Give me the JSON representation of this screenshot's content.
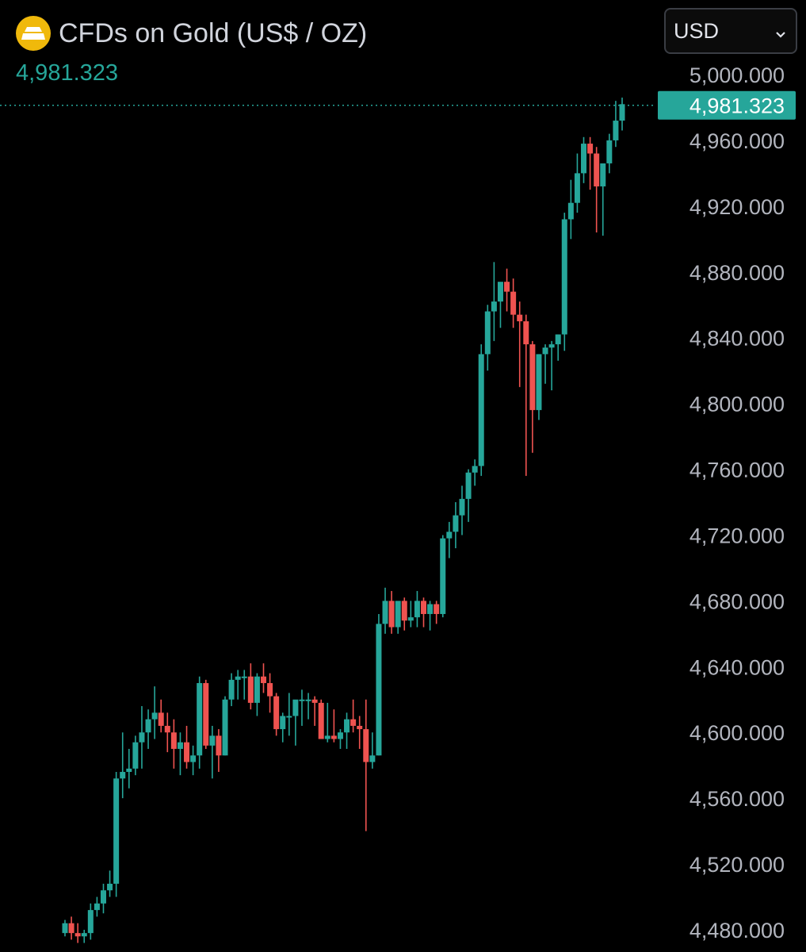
{
  "header": {
    "title": "CFDs on Gold (US$ / OZ)",
    "last_price": "4,981.323",
    "icon": "gold-bars-icon"
  },
  "currency_selector": {
    "value": "USD",
    "icon": "chevron-down-icon"
  },
  "colors": {
    "up": "#26a69a",
    "down": "#ef5350",
    "text": "#b2b5be",
    "background": "#000000"
  },
  "chart_data": {
    "type": "candlestick",
    "y_axis": {
      "ticks": [
        "5,000.000",
        "4,960.000",
        "4,920.000",
        "4,880.000",
        "4,840.000",
        "4,800.000",
        "4,760.000",
        "4,720.000",
        "4,680.000",
        "4,640.000",
        "4,600.000",
        "4,560.000",
        "4,520.000",
        "4,480.000"
      ],
      "tick_values": [
        5000,
        4960,
        4920,
        4880,
        4840,
        4800,
        4760,
        4720,
        4680,
        4640,
        4600,
        4560,
        4520,
        4480
      ],
      "range": [
        4470,
        5020
      ]
    },
    "current_price": {
      "value": 4981.323,
      "label": "4,981.323"
    },
    "candles": [
      [
        4478,
        4486,
        4476,
        4484
      ],
      [
        4484,
        4488,
        4474,
        4478
      ],
      [
        4478,
        4484,
        4472,
        4476
      ],
      [
        4476,
        4480,
        4472,
        4478
      ],
      [
        4478,
        4496,
        4474,
        4492
      ],
      [
        4492,
        4500,
        4488,
        4496
      ],
      [
        4496,
        4508,
        4490,
        4504
      ],
      [
        4504,
        4516,
        4500,
        4508
      ],
      [
        4508,
        4576,
        4500,
        4572
      ],
      [
        4572,
        4600,
        4560,
        4576
      ],
      [
        4576,
        4590,
        4566,
        4578
      ],
      [
        4578,
        4598,
        4574,
        4594
      ],
      [
        4594,
        4616,
        4578,
        4600
      ],
      [
        4600,
        4614,
        4590,
        4608
      ],
      [
        4608,
        4628,
        4596,
        4612
      ],
      [
        4612,
        4620,
        4600,
        4604
      ],
      [
        4604,
        4612,
        4588,
        4600
      ],
      [
        4600,
        4608,
        4578,
        4590
      ],
      [
        4590,
        4600,
        4574,
        4594
      ],
      [
        4594,
        4604,
        4578,
        4582
      ],
      [
        4582,
        4592,
        4574,
        4586
      ],
      [
        4586,
        4634,
        4578,
        4630
      ],
      [
        4630,
        4632,
        4590,
        4592
      ],
      [
        4592,
        4604,
        4572,
        4598
      ],
      [
        4598,
        4602,
        4576,
        4586
      ],
      [
        4586,
        4622,
        4586,
        4620
      ],
      [
        4620,
        4636,
        4616,
        4632
      ],
      [
        4632,
        4638,
        4620,
        4634
      ],
      [
        4634,
        4638,
        4620,
        4634
      ],
      [
        4634,
        4642,
        4614,
        4618
      ],
      [
        4618,
        4636,
        4610,
        4634
      ],
      [
        4634,
        4642,
        4624,
        4630
      ],
      [
        4630,
        4636,
        4612,
        4622
      ],
      [
        4622,
        4624,
        4598,
        4602
      ],
      [
        4602,
        4612,
        4594,
        4610
      ],
      [
        4610,
        4624,
        4598,
        4610
      ],
      [
        4610,
        4618,
        4592,
        4620
      ],
      [
        4620,
        4626,
        4604,
        4620
      ],
      [
        4620,
        4624,
        4608,
        4620
      ],
      [
        4620,
        4622,
        4604,
        4618
      ],
      [
        4618,
        4620,
        4598,
        4596
      ],
      [
        4596,
        4618,
        4594,
        4598
      ],
      [
        4598,
        4614,
        4594,
        4596
      ],
      [
        4596,
        4602,
        4590,
        4600
      ],
      [
        4600,
        4612,
        4590,
        4608
      ],
      [
        4608,
        4620,
        4600,
        4604
      ],
      [
        4604,
        4610,
        4590,
        4602
      ],
      [
        4602,
        4620,
        4540,
        4582
      ],
      [
        4582,
        4600,
        4578,
        4586
      ],
      [
        4586,
        4672,
        4586,
        4666
      ],
      [
        4666,
        4688,
        4660,
        4680
      ],
      [
        4680,
        4686,
        4660,
        4664
      ],
      [
        4664,
        4676,
        4660,
        4680
      ],
      [
        4680,
        4682,
        4662,
        4668
      ],
      [
        4668,
        4680,
        4664,
        4670
      ],
      [
        4670,
        4686,
        4664,
        4680
      ],
      [
        4680,
        4682,
        4664,
        4672
      ],
      [
        4672,
        4680,
        4662,
        4678
      ],
      [
        4678,
        4680,
        4666,
        4672
      ],
      [
        4672,
        4720,
        4670,
        4718
      ],
      [
        4718,
        4728,
        4706,
        4722
      ],
      [
        4722,
        4740,
        4712,
        4732
      ],
      [
        4732,
        4750,
        4720,
        4742
      ],
      [
        4742,
        4760,
        4728,
        4758
      ],
      [
        4758,
        4766,
        4750,
        4762
      ],
      [
        4762,
        4836,
        4756,
        4830
      ],
      [
        4830,
        4860,
        4820,
        4856
      ],
      [
        4856,
        4886,
        4838,
        4862
      ],
      [
        4862,
        4870,
        4846,
        4874
      ],
      [
        4874,
        4882,
        4856,
        4868
      ],
      [
        4868,
        4876,
        4846,
        4854
      ],
      [
        4854,
        4862,
        4810,
        4850
      ],
      [
        4850,
        4854,
        4756,
        4836
      ],
      [
        4836,
        4838,
        4770,
        4796
      ],
      [
        4796,
        4830,
        4790,
        4830
      ],
      [
        4830,
        4836,
        4812,
        4834
      ],
      [
        4834,
        4838,
        4808,
        4836
      ],
      [
        4836,
        4842,
        4826,
        4842
      ],
      [
        4842,
        4916,
        4832,
        4912
      ],
      [
        4912,
        4936,
        4900,
        4922
      ],
      [
        4922,
        4952,
        4916,
        4940
      ],
      [
        4940,
        4962,
        4934,
        4958
      ],
      [
        4958,
        4962,
        4930,
        4952
      ],
      [
        4952,
        4956,
        4904,
        4932
      ],
      [
        4932,
        4944,
        4902,
        4946
      ],
      [
        4946,
        4964,
        4940,
        4960
      ],
      [
        4960,
        4984,
        4956,
        4972
      ],
      [
        4972,
        4986,
        4966,
        4982
      ]
    ]
  }
}
